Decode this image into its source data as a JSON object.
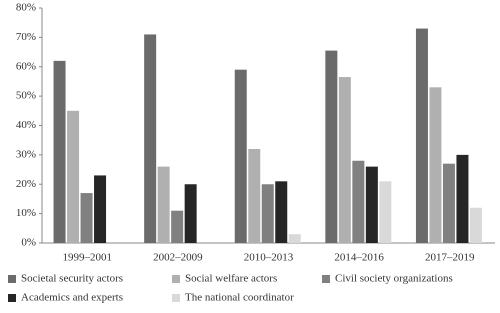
{
  "chart_data": {
    "type": "bar",
    "categories": [
      "1999–2001",
      "2002–2009",
      "2010–2013",
      "2014–2016",
      "2017–2019"
    ],
    "series": [
      {
        "name": "Societal security actors",
        "color": "#6b6b6b",
        "values": [
          62,
          71,
          59,
          65.5,
          73
        ]
      },
      {
        "name": "Social welfare actors",
        "color": "#b0b0b0",
        "values": [
          45,
          26,
          32,
          56.5,
          53
        ]
      },
      {
        "name": "Civil society organizations",
        "color": "#808080",
        "values": [
          17,
          11,
          20,
          28,
          27
        ]
      },
      {
        "name": "Academics and experts",
        "color": "#262626",
        "values": [
          23,
          20,
          21,
          26,
          30
        ]
      },
      {
        "name": "The national coordinator",
        "color": "#d9d9d9",
        "values": [
          null,
          null,
          3,
          21,
          12
        ]
      }
    ],
    "ylim": [
      0,
      80
    ],
    "yticks": [
      {
        "value": 0,
        "label": "0%"
      },
      {
        "value": 10,
        "label": "10%"
      },
      {
        "value": 20,
        "label": "20%"
      },
      {
        "value": 30,
        "label": "30%"
      },
      {
        "value": 40,
        "label": "40%"
      },
      {
        "value": 50,
        "label": "50%"
      },
      {
        "value": 60,
        "label": "60%"
      },
      {
        "value": 70,
        "label": "70%"
      },
      {
        "value": 80,
        "label": "80%"
      }
    ],
    "grid": false,
    "legend": "bottom"
  }
}
